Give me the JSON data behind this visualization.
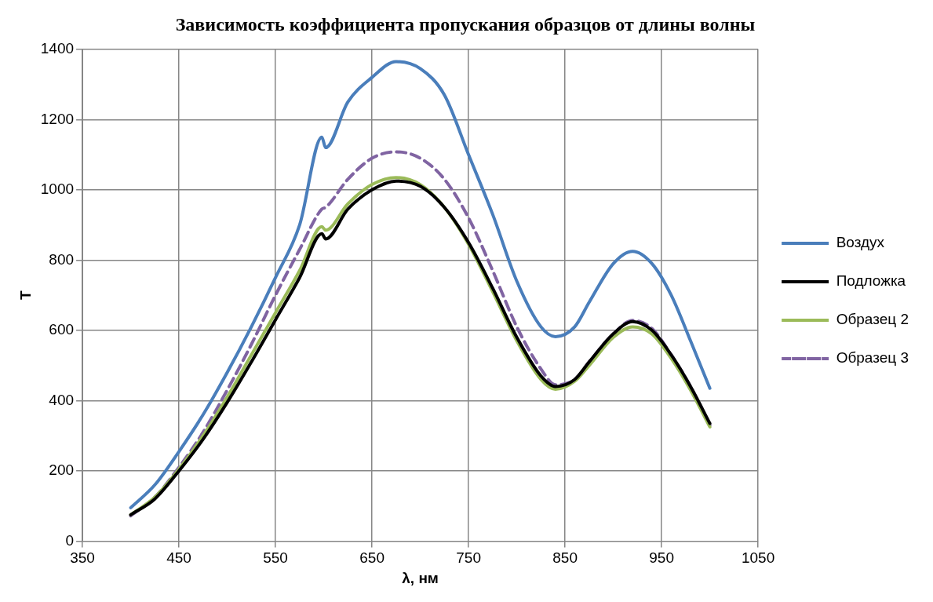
{
  "chart_data": {
    "type": "line",
    "title": "Зависимость коэффициента пропускания образцов от длины волны",
    "xlabel": "λ, нм",
    "ylabel": "T",
    "x": [
      400,
      425,
      450,
      475,
      500,
      525,
      550,
      575,
      598,
      602,
      625,
      650,
      675,
      700,
      725,
      750,
      775,
      800,
      825,
      840,
      860,
      875,
      900,
      920,
      940,
      960,
      980,
      1000
    ],
    "series": [
      {
        "name": "Воздух",
        "color": "#4a7ebb",
        "line_style": "solid",
        "values": [
          95,
          160,
          255,
          360,
          480,
          610,
          750,
          900,
          1150,
          1120,
          1250,
          1320,
          1365,
          1345,
          1270,
          1100,
          930,
          740,
          610,
          582,
          610,
          680,
          790,
          825,
          790,
          700,
          570,
          435
        ]
      },
      {
        "name": "Подложка",
        "color": "#000000",
        "line_style": "solid",
        "values": [
          75,
          120,
          200,
          290,
          395,
          510,
          630,
          750,
          875,
          860,
          945,
          1000,
          1025,
          1010,
          950,
          850,
          720,
          580,
          470,
          440,
          460,
          510,
          590,
          625,
          600,
          530,
          440,
          335
        ]
      },
      {
        "name": "Образец 2",
        "color": "#9bbb59",
        "line_style": "solid",
        "values": [
          75,
          125,
          205,
          300,
          410,
          530,
          650,
          770,
          895,
          885,
          960,
          1015,
          1035,
          1015,
          950,
          845,
          710,
          570,
          460,
          432,
          455,
          500,
          580,
          610,
          590,
          520,
          430,
          325
        ]
      },
      {
        "name": "Образец 3",
        "color": "#8064a2",
        "line_style": "dashed",
        "values": [
          72,
          125,
          210,
          310,
          430,
          560,
          700,
          830,
          945,
          950,
          1030,
          1090,
          1108,
          1090,
          1030,
          920,
          770,
          610,
          490,
          445,
          460,
          510,
          590,
          628,
          605,
          530,
          440,
          330
        ]
      }
    ],
    "xlim": [
      350,
      1050
    ],
    "xticks": [
      350,
      450,
      550,
      650,
      750,
      850,
      950,
      1050
    ],
    "ylim": [
      0,
      1400
    ],
    "yticks": [
      0,
      200,
      400,
      600,
      800,
      1000,
      1200,
      1400
    ],
    "grid": true,
    "legend": "right",
    "marker": "none"
  }
}
